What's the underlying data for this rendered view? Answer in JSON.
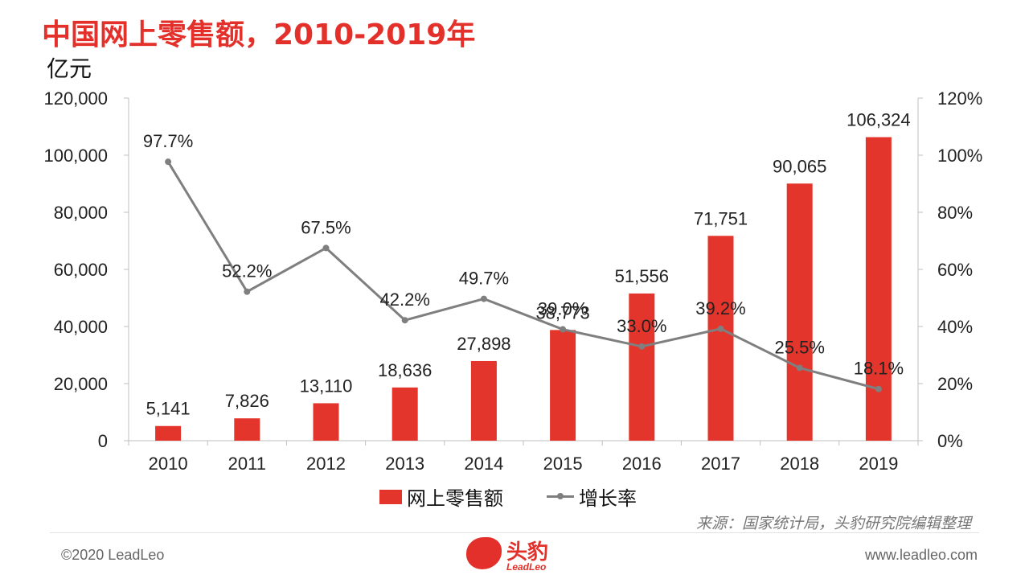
{
  "header": {
    "title": "中国网上零售额，2010-2019年",
    "unit": "亿元"
  },
  "chart_data": {
    "type": "bar",
    "categories": [
      "2010",
      "2011",
      "2012",
      "2013",
      "2014",
      "2015",
      "2016",
      "2017",
      "2018",
      "2019"
    ],
    "series": [
      {
        "name": "网上零售额",
        "type": "bar",
        "axis": "left",
        "values": [
          5141,
          7826,
          13110,
          18636,
          27898,
          38773,
          51556,
          71751,
          90065,
          106324
        ],
        "labels": [
          "5,141",
          "7,826",
          "13,110",
          "18,636",
          "27,898",
          "38,773",
          "51,556",
          "71,751",
          "90,065",
          "106,324"
        ],
        "color": "#e3352b"
      },
      {
        "name": "增长率",
        "type": "line",
        "axis": "right",
        "values": [
          97.7,
          52.2,
          67.5,
          42.2,
          49.7,
          39.0,
          33.0,
          39.2,
          25.5,
          18.1
        ],
        "labels": [
          "97.7%",
          "52.2%",
          "67.5%",
          "42.2%",
          "49.7%",
          "39.0%",
          "33.0%",
          "39.2%",
          "25.5%",
          "18.1%"
        ],
        "color": "#7f7f7f"
      }
    ],
    "ylim_left": [
      0,
      120000
    ],
    "yticks_left": [
      "0",
      "20,000",
      "40,000",
      "60,000",
      "80,000",
      "100,000",
      "120,000"
    ],
    "ylim_right": [
      0,
      120
    ],
    "yticks_right": [
      "0%",
      "20%",
      "40%",
      "60%",
      "80%",
      "100%",
      "120%"
    ],
    "legend_position": "bottom-center"
  },
  "legend": {
    "bar_label": "网上零售额",
    "line_label": "增长率"
  },
  "source": "来源：国家统计局，头豹研究院编辑整理",
  "footer": {
    "copyright": "©2020 LeadLeo",
    "website": "www.leadleo.com",
    "logo_text": "头豹",
    "logo_sub": "LeadLeo"
  },
  "colors": {
    "accent": "#e3302a",
    "bar": "#e3352b",
    "line": "#7f7f7f"
  }
}
